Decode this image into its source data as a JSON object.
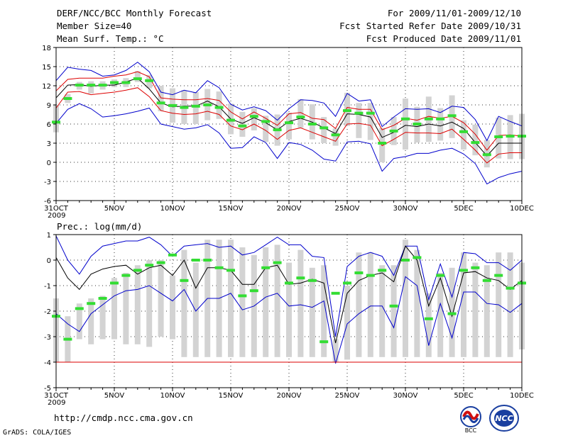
{
  "header": {
    "title": "DERF/NCC/BCC Monthly Forecast",
    "member_size": "Member Size=40",
    "variable": "Mean Surf. Temp.: °C",
    "period": "For 2009/11/01-2009/12/10",
    "fcst_started": "Fcst Started Refer Date 2009/10/31",
    "fcst_produced": "Fcst Produced Date 2009/11/01"
  },
  "footer": {
    "url": "http://cmdp.ncc.cma.gov.cn",
    "credit": "GrADS: COLA/IGES",
    "logo_bcc": "BCC",
    "logo_ncc": "NCC"
  },
  "colors": {
    "max": "#0000cc",
    "min": "#0000cc",
    "mean": "#000000",
    "spread": "#dd0000",
    "box": "#d3d3d3",
    "median": "#33dd33",
    "grid": "#333333"
  },
  "chart_data": [
    {
      "type": "line",
      "title": "Mean Surf. Temp.: °C",
      "xlabel": "",
      "ylabel": "",
      "ylim": [
        -6,
        18
      ],
      "yticks": [
        -6,
        -3,
        0,
        3,
        6,
        9,
        12,
        15,
        18
      ],
      "xlim": [
        0,
        40
      ],
      "xticks": [
        0,
        5,
        10,
        15,
        20,
        25,
        30,
        35,
        40
      ],
      "xticklabels": [
        "31OCT",
        "5NOV",
        "10NOV",
        "15NOV",
        "20NOV",
        "25NOV",
        "30NOV",
        "5DEC",
        "10DEC"
      ],
      "xsublabel": "2009",
      "series": [
        {
          "name": "max",
          "values": [
            12.8,
            14.9,
            14.6,
            14.4,
            13.5,
            13.7,
            14.4,
            15.7,
            14.2,
            11.0,
            10.6,
            11.3,
            10.9,
            12.8,
            11.7,
            9.1,
            8.2,
            8.7,
            8.1,
            6.6,
            8.4,
            9.8,
            9.7,
            9.3,
            7.2,
            10.8,
            9.6,
            9.8,
            5.6,
            7.1,
            8.4,
            8.3,
            8.4,
            7.8,
            8.8,
            8.6,
            6.7,
            3.4,
            7.2,
            6.4,
            5.7
          ]
        },
        {
          "name": "upper",
          "values": [
            11.2,
            13.0,
            13.2,
            13.2,
            13.2,
            13.5,
            13.7,
            14.2,
            13.4,
            10.1,
            9.9,
            9.8,
            9.8,
            10.0,
            9.7,
            7.9,
            6.8,
            7.9,
            6.9,
            5.8,
            7.6,
            7.8,
            6.9,
            6.7,
            5.3,
            8.6,
            8.3,
            8.3,
            5.1,
            5.8,
            6.9,
            6.6,
            7.2,
            6.9,
            7.2,
            6.2,
            4.4,
            1.9,
            4.2,
            4.3,
            4.1
          ]
        },
        {
          "name": "mean",
          "values": [
            10.1,
            12.1,
            12.2,
            11.9,
            12.1,
            12.1,
            12.6,
            13.2,
            11.5,
            9.3,
            8.7,
            8.8,
            8.8,
            9.6,
            8.7,
            6.8,
            6.1,
            7.0,
            6.2,
            5.1,
            6.4,
            6.9,
            6.3,
            5.4,
            4.5,
            7.6,
            7.5,
            7.1,
            3.9,
            4.7,
            5.8,
            5.6,
            6.0,
            5.7,
            6.3,
            5.3,
            3.1,
            1.0,
            3.0,
            3.0,
            3.0
          ]
        },
        {
          "name": "lower",
          "values": [
            8.5,
            11.0,
            11.1,
            10.6,
            10.8,
            11.0,
            11.3,
            11.7,
            10.3,
            8.1,
            7.7,
            7.5,
            7.6,
            8.0,
            7.5,
            5.7,
            5.1,
            6.0,
            5.0,
            3.6,
            5.0,
            5.4,
            4.7,
            4.0,
            3.3,
            6.0,
            6.1,
            5.8,
            2.6,
            3.6,
            4.7,
            4.6,
            4.6,
            4.5,
            5.2,
            3.6,
            1.9,
            -0.1,
            1.3,
            1.5,
            1.5
          ]
        },
        {
          "name": "min",
          "values": [
            6.1,
            8.3,
            9.2,
            8.4,
            7.1,
            7.3,
            7.6,
            8.0,
            8.5,
            6.0,
            5.6,
            5.2,
            5.4,
            5.9,
            4.6,
            2.2,
            2.3,
            4.0,
            3.1,
            0.6,
            3.1,
            2.8,
            1.9,
            0.5,
            0.2,
            3.2,
            3.3,
            2.9,
            -1.4,
            0.6,
            0.9,
            1.4,
            1.4,
            1.9,
            2.2,
            1.3,
            -0.2,
            -3.4,
            -2.4,
            -1.8,
            -1.4
          ]
        }
      ],
      "boxes": {
        "low": [
          4.7,
          9.3,
          11.4,
          10.8,
          11.4,
          11.8,
          11.8,
          12.6,
          11.6,
          8.0,
          6.2,
          6.0,
          6.0,
          6.6,
          6.8,
          4.4,
          4.0,
          5.0,
          3.2,
          2.6,
          3.6,
          5.4,
          3.6,
          3.0,
          2.6,
          5.7,
          3.8,
          3.5,
          0.0,
          2.7,
          2.0,
          3.1,
          3.2,
          3.4,
          3.8,
          2.0,
          1.1,
          -0.8,
          0.6,
          0.5,
          0.5
        ],
        "high": [
          9.0,
          10.7,
          12.6,
          12.7,
          12.7,
          13.0,
          13.2,
          14.3,
          13.7,
          12.0,
          11.6,
          11.3,
          11.0,
          11.5,
          11.1,
          9.2,
          7.9,
          8.5,
          7.3,
          7.5,
          7.8,
          9.9,
          9.1,
          7.1,
          5.3,
          10.9,
          9.3,
          9.3,
          5.4,
          7.1,
          10.0,
          8.7,
          10.3,
          8.5,
          10.5,
          6.6,
          5.9,
          3.5,
          7.0,
          7.4,
          7.6
        ],
        "median": [
          6.3,
          10.0,
          12.1,
          12.1,
          12.1,
          12.5,
          12.5,
          13.1,
          12.8,
          9.3,
          8.9,
          8.6,
          8.8,
          9.0,
          8.6,
          6.6,
          5.7,
          7.2,
          6.4,
          5.1,
          6.2,
          7.1,
          6.0,
          5.4,
          4.3,
          8.1,
          7.7,
          7.7,
          3.0,
          4.9,
          6.8,
          6.0,
          6.8,
          6.8,
          7.3,
          4.8,
          3.1,
          1.2,
          4.0,
          4.1,
          4.1
        ]
      }
    },
    {
      "type": "line",
      "title": "Prec.: log(mm/d)",
      "xlabel": "",
      "ylabel": "",
      "ylim": [
        -5,
        1
      ],
      "yticks": [
        -5,
        -4,
        -3,
        -2,
        -1,
        0,
        1
      ],
      "xlim": [
        0,
        40
      ],
      "xticks": [
        0,
        5,
        10,
        15,
        20,
        25,
        30,
        35,
        40
      ],
      "xticklabels": [
        "31OCT",
        "5NOV",
        "10NOV",
        "15NOV",
        "20NOV",
        "25NOV",
        "30NOV",
        "5DEC",
        "10DEC"
      ],
      "xsublabel": "2009",
      "series": [
        {
          "name": "max",
          "values": [
            0.95,
            0.0,
            -0.55,
            0.15,
            0.55,
            0.65,
            0.75,
            0.75,
            0.9,
            0.6,
            0.15,
            0.55,
            0.6,
            0.65,
            0.5,
            0.55,
            0.2,
            0.3,
            0.6,
            0.9,
            0.6,
            0.6,
            0.15,
            0.1,
            -3.0,
            -0.25,
            0.15,
            0.3,
            0.15,
            -0.6,
            0.55,
            0.55,
            -1.55,
            -0.15,
            -1.45,
            0.3,
            0.25,
            -0.1,
            -0.1,
            -0.4,
            0.0
          ]
        },
        {
          "name": "mean",
          "values": [
            0.1,
            -0.7,
            -1.15,
            -0.55,
            -0.35,
            -0.25,
            -0.2,
            -0.55,
            -0.3,
            -0.2,
            -0.6,
            0.0,
            -1.1,
            -0.3,
            -0.3,
            -0.4,
            -0.95,
            -0.95,
            -0.3,
            -0.2,
            -0.95,
            -0.9,
            -0.75,
            -0.9,
            -3.25,
            -1.3,
            -0.8,
            -0.6,
            -0.5,
            -0.85,
            0.55,
            0.0,
            -1.8,
            -0.7,
            -2.2,
            -0.5,
            -0.45,
            -0.7,
            -0.8,
            -1.15,
            -0.8
          ]
        },
        {
          "name": "min",
          "values": [
            -2.1,
            -2.5,
            -2.8,
            -2.1,
            -1.75,
            -1.4,
            -1.2,
            -1.15,
            -1.0,
            -1.3,
            -1.6,
            -1.15,
            -2.0,
            -1.5,
            -1.5,
            -1.3,
            -1.95,
            -1.8,
            -1.45,
            -1.3,
            -1.8,
            -1.75,
            -1.85,
            -1.6,
            -4.05,
            -2.5,
            -2.1,
            -1.8,
            -1.8,
            -2.65,
            -0.65,
            -1.0,
            -3.35,
            -1.7,
            -3.05,
            -1.25,
            -1.25,
            -1.7,
            -1.75,
            -2.05,
            -1.7
          ]
        },
        {
          "name": "floor",
          "values": [
            -4.0,
            -4.0,
            -4.0,
            -4.0,
            -4.0,
            -4.0,
            -4.0,
            -4.0,
            -4.0,
            -4.0,
            -4.0,
            -4.0,
            -4.0,
            -4.0,
            -4.0,
            -4.0,
            -4.0,
            -4.0,
            -4.0,
            -4.0,
            -4.0,
            -4.0,
            -4.0,
            -4.0,
            -4.0,
            -4.0,
            -4.0,
            -4.0,
            -4.0,
            -4.0,
            -4.0,
            -4.0,
            -4.0,
            -4.0,
            -4.0,
            -4.0,
            -4.0,
            -4.0,
            -4.0,
            -4.0,
            -4.0
          ]
        }
      ],
      "boxes": {
        "low": [
          -4.0,
          -4.0,
          -3.1,
          -3.3,
          -3.1,
          -3.1,
          -3.3,
          -3.3,
          -3.4,
          -3.0,
          -3.1,
          -3.8,
          -3.8,
          -3.8,
          -3.8,
          -3.8,
          -3.8,
          -3.8,
          -3.8,
          -3.8,
          -3.8,
          -3.8,
          -3.8,
          -3.8,
          -4.0,
          -3.9,
          -3.8,
          -3.8,
          -3.8,
          -3.8,
          -3.8,
          -3.8,
          -3.8,
          -3.8,
          -3.8,
          -3.8,
          -3.8,
          -3.8,
          -3.8,
          -3.8,
          -3.5
        ],
        "high": [
          -1.5,
          -2.2,
          -1.7,
          -1.5,
          -1.4,
          -0.7,
          -0.5,
          -0.2,
          0.0,
          0.0,
          -0.6,
          0.4,
          -0.1,
          0.8,
          0.8,
          0.8,
          0.5,
          0.2,
          0.5,
          0.6,
          -0.1,
          0.4,
          -0.3,
          -0.2,
          -3.1,
          -1.0,
          0.3,
          0.3,
          -0.2,
          -0.2,
          0.8,
          0.4,
          -1.3,
          -0.5,
          -0.3,
          0.3,
          -0.1,
          -0.2,
          0.3,
          0.3,
          -0.1
        ],
        "median": [
          -2.2,
          -3.1,
          -1.9,
          -1.7,
          -1.5,
          -0.9,
          -0.6,
          -0.4,
          -0.2,
          -0.1,
          0.2,
          -0.8,
          0.0,
          0.0,
          -0.3,
          -0.4,
          -1.4,
          -1.2,
          -0.3,
          -0.1,
          -0.9,
          -0.7,
          -0.8,
          -3.2,
          -1.3,
          -0.9,
          -0.5,
          -0.6,
          -0.4,
          -1.8,
          0.0,
          0.1,
          -2.3,
          -0.6,
          -2.1,
          -0.4,
          -0.3,
          -0.8,
          -0.6,
          -1.1,
          -0.9
        ]
      }
    }
  ]
}
